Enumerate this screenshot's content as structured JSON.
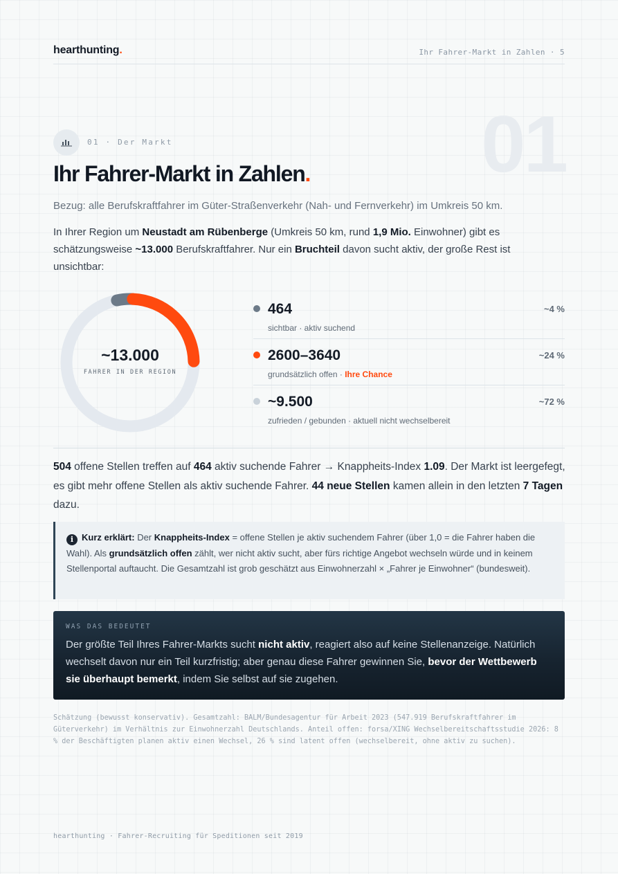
{
  "header": {
    "brand": "hearthunting",
    "brand_dot": ".",
    "page_label": "Ihr Fahrer-Markt in Zahlen · 5"
  },
  "section": {
    "icon": "bar-chart-icon",
    "label": "01 · Der Markt",
    "big_number": "01",
    "title": "Ihr Fahrer-Markt in Zahlen",
    "title_dot": "."
  },
  "bezug": "Bezug: alle Berufskraftfahrer im Güter-Straßenverkehr (Nah- und Fernverkehr) im Umkreis 50 km.",
  "intro": {
    "t1": "In Ihrer Region um ",
    "b1": "Neustadt am Rübenberge",
    "t2": " (Umkreis 50 km, rund ",
    "b2": "1,9 Mio.",
    "t3": " Einwohner) gibt es schätzungsweise ",
    "b3": "~13.000",
    "t4": " Berufskraftfahrer. Nur ein ",
    "b4": "Bruchteil",
    "t5": " davon sucht aktiv, der große Rest ist unsichtbar:"
  },
  "donut": {
    "value": "~13.000",
    "label": "FAHRER IN DER REGION",
    "colors": {
      "track": "#e4e9ef",
      "active": "#6c7a88",
      "open": "#ff4a0f"
    },
    "shares_percent": {
      "active": 4,
      "open": 24,
      "rest": 72
    }
  },
  "stats": [
    {
      "value": "464",
      "desc": "sichtbar · aktiv suchend",
      "highlight": "",
      "pct": "~4 %",
      "color": "#6c7a88"
    },
    {
      "value": "2600–3640",
      "desc": "grundsätzlich offen · ",
      "highlight": "Ihre Chance",
      "pct": "~24 %",
      "color": "#ff4a0f"
    },
    {
      "value": "~9.500",
      "desc": "zufrieden / gebunden · aktuell nicht wechselbereit",
      "highlight": "",
      "pct": "~72 %",
      "color": "#c9d2da"
    }
  ],
  "market": {
    "b1": "504",
    "t1": " offene Stellen treffen auf ",
    "b2": "464",
    "t2": " aktiv suchende Fahrer",
    "arrow": "→",
    "t3": " Knappheits-Index ",
    "b3": "1.09",
    "t4": ". Der Markt ist leergefegt, es gibt mehr offene Stellen als aktiv suchende Fahrer. ",
    "b4": "44 neue Stellen",
    "t5": " kamen allein in den letzten ",
    "b5": "7 Tagen",
    "t6": " dazu."
  },
  "info": {
    "icon": "info-icon",
    "icon_glyph": "i",
    "b1": "Kurz erklärt:",
    "t1": " Der ",
    "b2": "Knappheits-Index",
    "t2": " = offene Stellen je aktiv suchendem Fahrer (über 1,0 = die Fahrer haben die Wahl). Als ",
    "b3": "grundsätzlich offen",
    "t3": " zählt, wer nicht aktiv sucht, aber fürs richtige Angebot wechseln würde und in keinem Stellenportal auftaucht. Die Gesamtzahl ist grob geschätzt aus Einwohnerzahl × „Fahrer je Einwohner“ (bundesweit)."
  },
  "meaning": {
    "kicker": "WAS DAS BEDEUTET",
    "t1": "Der größte Teil Ihres Fahrer-Markts sucht ",
    "b1": "nicht aktiv",
    "t2": ", reagiert also auf keine Stellenanzeige. Natürlich wechselt davon nur ein Teil kurzfristig; aber genau diese Fahrer gewinnen Sie, ",
    "b2": "bevor der Wettbewerb sie überhaupt bemerkt",
    "t3": ", indem Sie selbst auf sie zugehen."
  },
  "source": "Schätzung (bewusst konservativ). Gesamtzahl: BALM/Bundesagentur für Arbeit 2023 (547.919 Berufskraftfahrer im Güterverkehr) im Verhältnis zur Einwohnerzahl Deutschlands. Anteil offen: forsa/XING Wechselbereitschaftsstudie 2026: 8 % der Beschäftigten planen aktiv einen Wechsel, 26 % sind latent offen (wechselbereit, ohne aktiv zu suchen).",
  "footer": "hearthunting · Fahrer-Recruiting für Speditionen seit 2019"
}
